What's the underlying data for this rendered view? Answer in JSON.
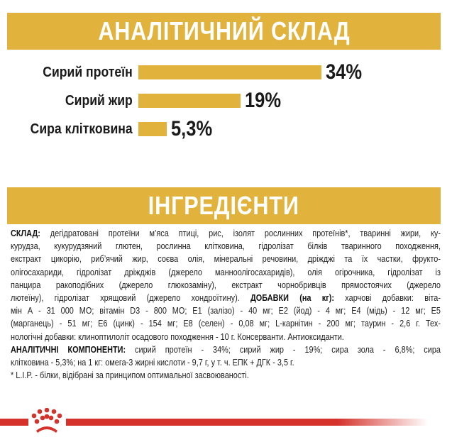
{
  "analysis": {
    "title": "АНАЛІТИЧНИЙ СКЛАД",
    "rows": [
      {
        "label": "Сирий протеїн",
        "value": 34,
        "display": "34%"
      },
      {
        "label": "Сирий жир",
        "value": 19,
        "display": "19%"
      },
      {
        "label": "Сира клітковина",
        "value": 5.3,
        "display": "5,3%"
      }
    ]
  },
  "ingredients": {
    "title": "ІНГРЕДІЄНТИ",
    "lines": [
      [
        {
          "b": "СКЛАД: "
        },
        {
          "t": "дегідратовані протеїни м’яса птиці, рис, ізолят рослинних протеїнів*, тваринні жири, ку-"
        }
      ],
      [
        {
          "t": "курудза, кукурудзяний глютен, рослинна клітковина, гідролізат білків тваринного походження,"
        }
      ],
      [
        {
          "t": "екстракт цикорію, риб’ячий жир, соєва олія, мінеральні речовини, дріжджі та їх частки, фрукто-"
        }
      ],
      [
        {
          "t": "олігосахариди, гідролізат дріжджів (джерело манноолігосахаридів), олія огірочника, гідролізат із"
        }
      ],
      [
        {
          "t": "панцира ракоподібних (джерело глюкозаміну), екстракт чорнобривців прямостоячих (джерело"
        }
      ],
      [
        {
          "t": "лютеїну), гідролізат хрящовий (джерело хондроїтину). "
        },
        {
          "b": "ДОБАВКИ (на кг): "
        },
        {
          "t": "харчові добавки: віта-"
        }
      ],
      [
        {
          "t": "мін А - 31 000 МО; вітамін D3 - 800 МО; Е1 (залізо) - 40 мг; Е2 (йод) - 4 мг; Е4 (мідь) - 12 мг; Е5"
        }
      ],
      [
        {
          "t": "(марганець) - 51 мг; Е6 (цинк) - 154 мг; Е8 (селен) - 0,08 мг; L-карнітин - 200 мг; таурин - 2,6 г. Тех-"
        }
      ],
      [
        {
          "t": "нологічні добавки: клиноптилоліт осадового походження - 10 г. Консерванти. Антиоксиданти."
        }
      ],
      [
        {
          "b": "АНАЛІТИЧНІ КОМПОНЕНТИ: "
        },
        {
          "t": "сирий протеїн - 34%; сирий жир - 19%; сира зола - 6,8%; сира"
        }
      ],
      [
        {
          "t": "клітковина - 5,3%; на 1 кг: омега-3 жирні кислоти - 9,7 г, у т. ч. ЕПК + ДГК - 3,5 г."
        }
      ],
      [
        {
          "t": "* L.I.P. - білки, відібрані за принципом оптимальної засвоюваності."
        }
      ]
    ]
  },
  "colors": {
    "accent": "#e1b23c",
    "brand_red": "#d4322b"
  },
  "logo": {
    "icon": "royal-canin-crown-icon"
  }
}
